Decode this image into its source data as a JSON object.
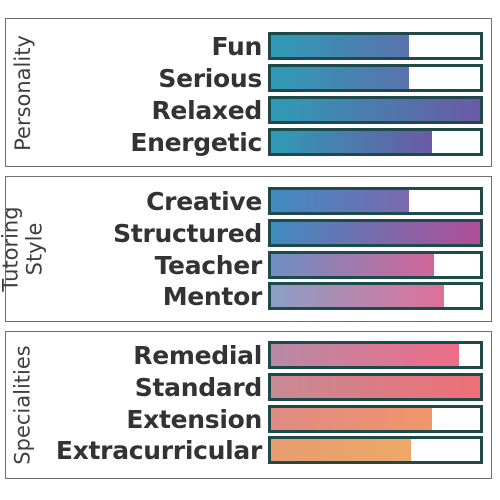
{
  "sections": [
    {
      "title_lines": [
        "Personality"
      ],
      "rows": [
        {
          "label": "Fun",
          "value": 0.66,
          "colors": [
            "#2f9bb5",
            "#5a72ad"
          ]
        },
        {
          "label": "Serious",
          "value": 0.66,
          "colors": [
            "#2f9bb5",
            "#5a72ad"
          ]
        },
        {
          "label": "Relaxed",
          "value": 1.0,
          "colors": [
            "#2f9bb5",
            "#6a5aa5"
          ]
        },
        {
          "label": "Energetic",
          "value": 0.77,
          "colors": [
            "#2f9bb5",
            "#6a5aa5"
          ]
        }
      ]
    },
    {
      "title_lines": [
        "Tutoring",
        "Style"
      ],
      "rows": [
        {
          "label": "Creative",
          "value": 0.66,
          "colors": [
            "#3f8bc2",
            "#7b6aaf"
          ]
        },
        {
          "label": "Structured",
          "value": 1.0,
          "colors": [
            "#3f8bc2",
            "#b04e96"
          ]
        },
        {
          "label": "Teacher",
          "value": 0.78,
          "colors": [
            "#6e8fc2",
            "#d2669a"
          ]
        },
        {
          "label": "Mentor",
          "value": 0.83,
          "colors": [
            "#8a9fc6",
            "#e0709a"
          ]
        }
      ]
    },
    {
      "title_lines": [
        "Specialities"
      ],
      "rows": [
        {
          "label": "Remedial",
          "value": 0.9,
          "colors": [
            "#b88aa6",
            "#ef6c88"
          ]
        },
        {
          "label": "Standard",
          "value": 1.0,
          "colors": [
            "#c88a94",
            "#ee6f76"
          ]
        },
        {
          "label": "Extension",
          "value": 0.77,
          "colors": [
            "#e08a84",
            "#f0966a"
          ]
        },
        {
          "label": "Extracurricular",
          "value": 0.67,
          "colors": [
            "#e79d6f",
            "#eea867"
          ]
        }
      ]
    }
  ]
}
